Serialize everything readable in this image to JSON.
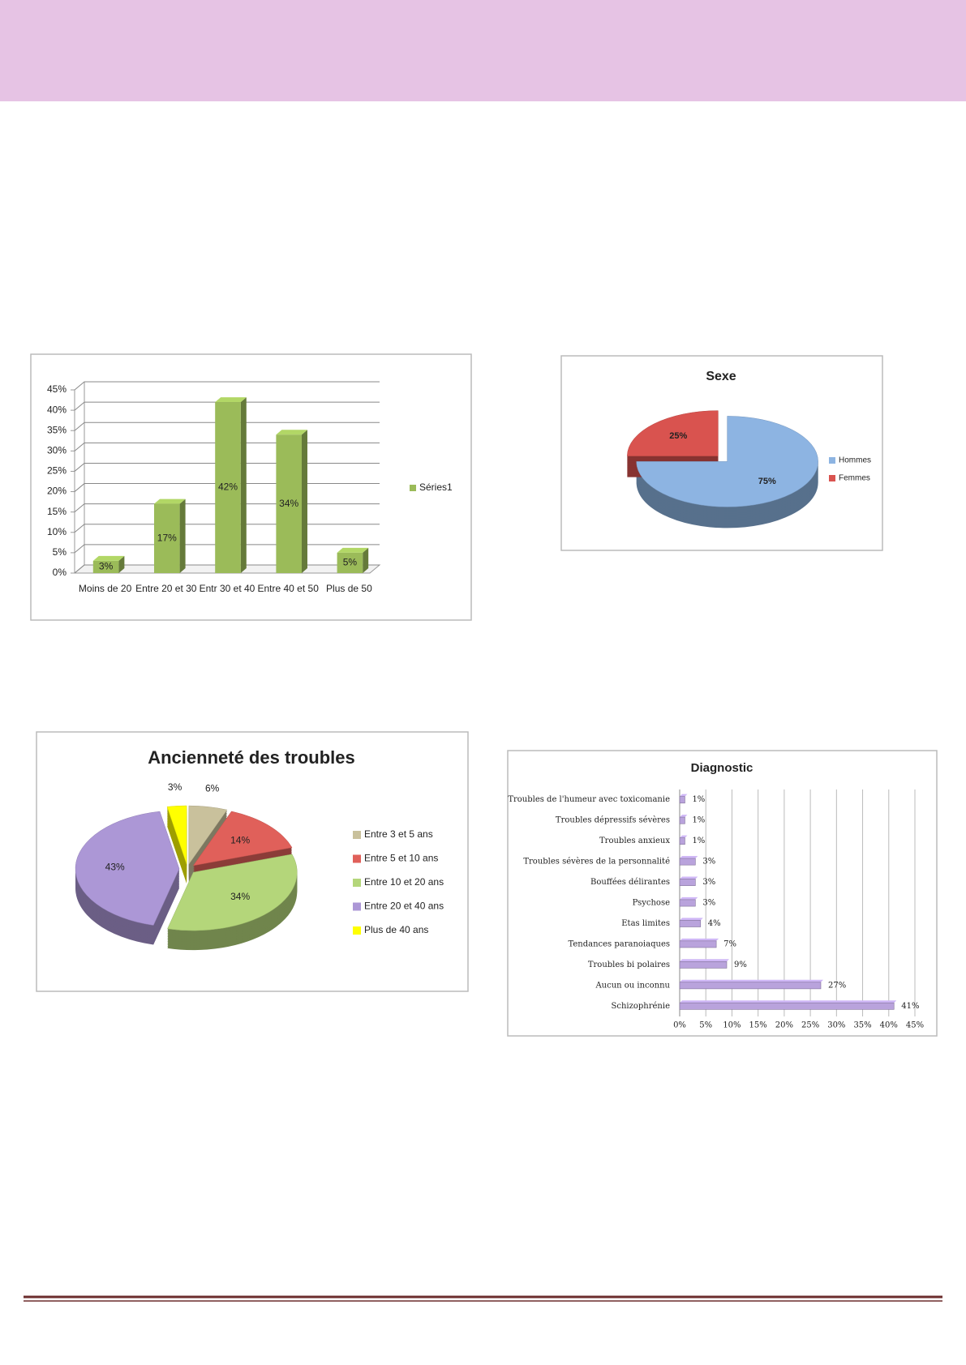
{
  "chart_data": [
    {
      "type": "bar",
      "categories": [
        "Moins de 20",
        "Entre 20 et 30",
        "Entr 30 et 40",
        "Entre 40 et 50",
        "Plus de 50"
      ],
      "series": [
        {
          "name": "Séries1",
          "color": "#9bbb59",
          "values": [
            3,
            17,
            42,
            34,
            5
          ],
          "value_labels": [
            "3%",
            "17%",
            "42%",
            "34%",
            "5%"
          ]
        }
      ],
      "ylim": [
        0,
        45
      ],
      "yticks": [
        {
          "value": 0,
          "label": "0%"
        },
        {
          "value": 5,
          "label": "5%"
        },
        {
          "value": 10,
          "label": "10%"
        },
        {
          "value": 15,
          "label": "15%"
        },
        {
          "value": 20,
          "label": "20%"
        },
        {
          "value": 25,
          "label": "25%"
        },
        {
          "value": 30,
          "label": "30%"
        },
        {
          "value": 35,
          "label": "35%"
        },
        {
          "value": 40,
          "label": "40%"
        },
        {
          "value": 45,
          "label": "45%"
        }
      ],
      "grid": true,
      "legend": "right"
    },
    {
      "type": "pie",
      "title": "Sexe",
      "categories": [
        "Hommes",
        "Femmes"
      ],
      "values": [
        75,
        25
      ],
      "value_labels": [
        "75%",
        "25%"
      ],
      "colors": [
        "#8db4e2",
        "#d9534f"
      ],
      "legend": "right"
    },
    {
      "type": "pie",
      "title": "Ancienneté des troubles",
      "categories": [
        "Entre 3 et 5 ans",
        "Entre 5 et 10 ans",
        "Entre 10 et 20 ans",
        "Entre 20 et 40 ans",
        "Plus de 40 ans"
      ],
      "values": [
        6,
        14,
        34,
        43,
        3
      ],
      "value_labels": [
        "6%",
        "14%",
        "34%",
        "43%",
        "3%"
      ],
      "colors": [
        "#c9c19c",
        "#e0605a",
        "#b4d67a",
        "#ac97d6",
        "#ffff00"
      ],
      "legend": "right"
    },
    {
      "type": "bar",
      "orientation": "horizontal",
      "title": "Diagnostic",
      "categories": [
        "Troubles de l'humeur avec toxicomanie",
        "Troubles dépressifs sévères",
        "Troubles anxieux",
        "Troubles sévères de la personnalité",
        "Bouffées délirantes",
        "Psychose",
        "Etas limites",
        "Tendances paranoiaques",
        "Troubles bi polaires",
        "Aucun ou inconnu",
        "Schizophrénie"
      ],
      "values": [
        1,
        1,
        1,
        3,
        3,
        3,
        4,
        7,
        9,
        27,
        41
      ],
      "value_labels": [
        "1%",
        "1%",
        "1%",
        "3%",
        "3%",
        "3%",
        "4%",
        "7%",
        "9%",
        "27%",
        "41%"
      ],
      "color": "#b9a3dc",
      "xlim": [
        0,
        45
      ],
      "xticks": [
        {
          "value": 0,
          "label": "0%"
        },
        {
          "value": 5,
          "label": "5%"
        },
        {
          "value": 10,
          "label": "10%"
        },
        {
          "value": 15,
          "label": "15%"
        },
        {
          "value": 20,
          "label": "20%"
        },
        {
          "value": 25,
          "label": "25%"
        },
        {
          "value": 30,
          "label": "30%"
        },
        {
          "value": 35,
          "label": "35%"
        },
        {
          "value": 40,
          "label": "40%"
        },
        {
          "value": 45,
          "label": "45%"
        }
      ],
      "grid": true
    }
  ]
}
